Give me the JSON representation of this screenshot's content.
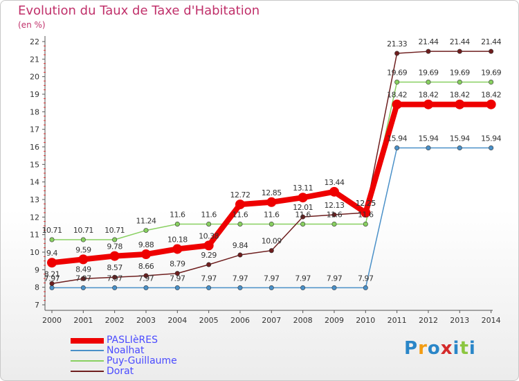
{
  "title": "Evolution du Taux de Taxe d'Habitation",
  "unit": "(en %)",
  "logo": {
    "letters": [
      {
        "ch": "P",
        "color": "#2a86c8"
      },
      {
        "ch": "r",
        "color": "#f39c12"
      },
      {
        "ch": "o",
        "color": "#2a86c8"
      },
      {
        "ch": "x",
        "color": "#d42a2a"
      },
      {
        "ch": "i",
        "color": "#2a86c8"
      },
      {
        "ch": "t",
        "color": "#8cc63f"
      },
      {
        "ch": "i",
        "color": "#2a86c8"
      }
    ]
  },
  "chart_data": {
    "type": "line",
    "title": "Evolution du Taux de Taxe d'Habitation",
    "ylabel": "(en %)",
    "xlabel": "",
    "x": [
      "2000",
      "2001",
      "2002",
      "2003",
      "2004",
      "2005",
      "2006",
      "2007",
      "2008",
      "2009",
      "2010",
      "2011",
      "2012",
      "2013",
      "2014"
    ],
    "ylim": [
      7,
      22
    ],
    "yticks": [
      "7",
      "8",
      "9",
      "10",
      "11",
      "12",
      "13",
      "14",
      "15",
      "16",
      "17",
      "18",
      "19",
      "20",
      "21",
      "22"
    ],
    "grid": false,
    "legend": "bottom-left",
    "series": [
      {
        "name": "PASLIèRES",
        "color": "#ee0000",
        "highlight": true,
        "values": [
          9.4,
          9.59,
          9.78,
          9.88,
          10.18,
          10.38,
          12.72,
          12.85,
          13.11,
          13.44,
          12.25,
          18.42,
          18.42,
          18.42,
          18.42
        ],
        "labels": [
          "9.4",
          "9.59",
          "9.78",
          "9.88",
          "10.18",
          "10.38",
          "12.72",
          "12.85",
          "13.11",
          "13.44",
          "12.25",
          "18.42",
          "18.42",
          "18.42",
          "18.42"
        ]
      },
      {
        "name": "Noalhat",
        "color": "#4a90c8",
        "values": [
          7.97,
          7.97,
          7.97,
          7.97,
          7.97,
          7.97,
          7.97,
          7.97,
          7.97,
          7.97,
          7.97,
          15.94,
          15.94,
          15.94,
          15.94
        ],
        "labels": [
          "7.97",
          "7.97",
          "7.97",
          "7.97",
          "7.97",
          "7.97",
          "7.97",
          "7.97",
          "7.97",
          "7.97",
          "7.97",
          "15.94",
          "15.94",
          "15.94",
          "15.94"
        ]
      },
      {
        "name": "Puy-Guillaume",
        "color": "#88d060",
        "values": [
          10.71,
          10.71,
          10.71,
          11.24,
          11.6,
          11.6,
          11.6,
          11.6,
          11.6,
          11.6,
          11.6,
          19.69,
          19.69,
          19.69,
          19.69
        ],
        "labels": [
          "10.71",
          "10.71",
          "10.71",
          "11.24",
          "11.6",
          "11.6",
          "11.6",
          "11.6",
          "11.6",
          "11.6",
          "11.6",
          "19.69",
          "19.69",
          "19.69",
          "19.69"
        ]
      },
      {
        "name": "Dorat",
        "color": "#6e1e1e",
        "values": [
          8.21,
          8.49,
          8.57,
          8.66,
          8.79,
          9.29,
          9.84,
          10.09,
          12.01,
          12.13,
          12.25,
          21.33,
          21.44,
          21.44,
          21.44
        ],
        "labels": [
          "8.21",
          "8.49",
          "8.57",
          "8.66",
          "8.79",
          "9.29",
          "9.84",
          "10.09",
          "12.01",
          "12.13",
          "12.25",
          "21.33",
          "21.44",
          "21.44",
          "21.44"
        ]
      }
    ]
  }
}
